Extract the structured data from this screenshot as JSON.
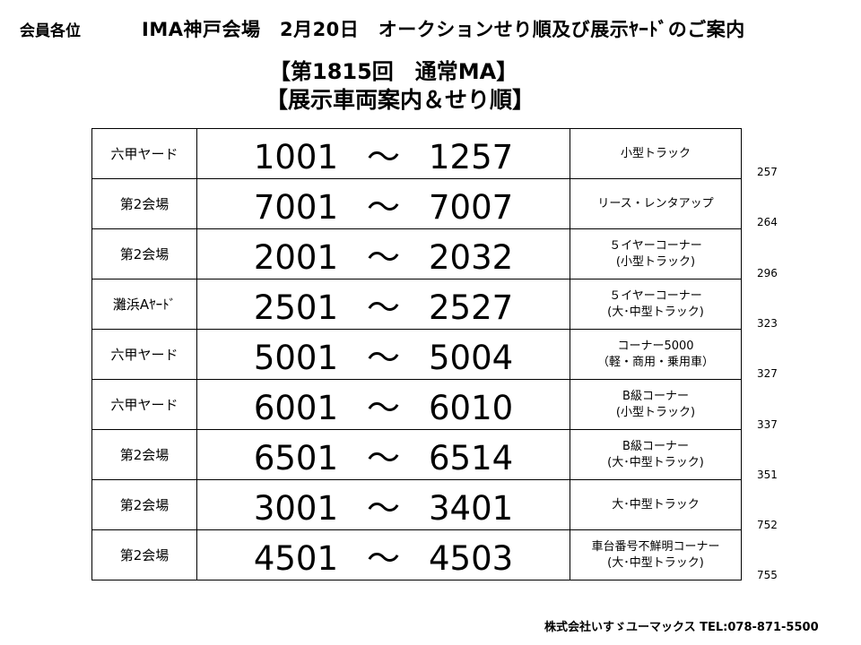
{
  "header": {
    "members": "会員各位",
    "title": "IMA神戸会場　2月20日　オークションせり順及び展示ﾔｰﾄﾞのご案内"
  },
  "session": {
    "title": "【第1815回　通常MA】",
    "subtitle": "【展示車両案内＆せり順】"
  },
  "rows": [
    {
      "yard": "六甲ヤード",
      "from": "1001",
      "to": "1257",
      "category": [
        "小型トラック"
      ],
      "count": "257"
    },
    {
      "yard": "第2会場",
      "from": "7001",
      "to": "7007",
      "category": [
        "リース・レンタアップ"
      ],
      "count": "264"
    },
    {
      "yard": "第2会場",
      "from": "2001",
      "to": "2032",
      "category": [
        "５イヤーコーナー",
        "(小型トラック)"
      ],
      "count": "296"
    },
    {
      "yard": "灘浜Aﾔｰﾄﾞ",
      "from": "2501",
      "to": "2527",
      "category": [
        "５イヤーコーナー",
        "(大･中型トラック)"
      ],
      "count": "323"
    },
    {
      "yard": "六甲ヤード",
      "from": "5001",
      "to": "5004",
      "category": [
        "コーナー5000",
        "（軽・商用・乗用車）"
      ],
      "count": "327"
    },
    {
      "yard": "六甲ヤード",
      "from": "6001",
      "to": "6010",
      "category": [
        "B級コーナー",
        "(小型トラック)"
      ],
      "count": "337"
    },
    {
      "yard": "第2会場",
      "from": "6501",
      "to": "6514",
      "category": [
        "B級コーナー",
        "(大･中型トラック)"
      ],
      "count": "351"
    },
    {
      "yard": "第2会場",
      "from": "3001",
      "to": "3401",
      "category": [
        "大･中型トラック"
      ],
      "count": "752"
    },
    {
      "yard": "第2会場",
      "from": "4501",
      "to": "4503",
      "category": [
        "車台番号不鮮明コーナー",
        "(大･中型トラック)"
      ],
      "count": "755"
    }
  ],
  "range_separator": "～",
  "footer": {
    "company": "株式会社いすゞユーマックス TEL:078-871-5500"
  }
}
